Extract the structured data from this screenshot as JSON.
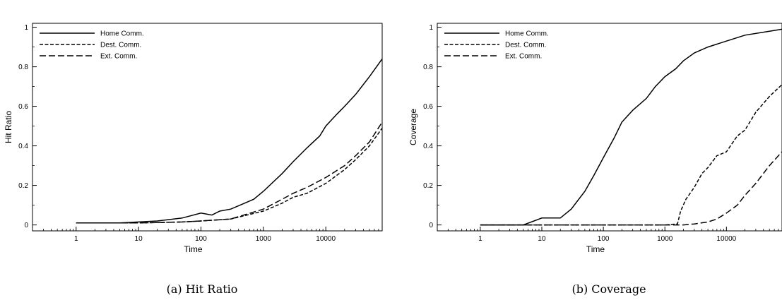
{
  "chart_data": [
    {
      "type": "line",
      "caption": "(a) Hit Ratio",
      "xlabel": "Time",
      "ylabel": "Hit Ratio",
      "xscale": "log",
      "xlim": [
        0.2,
        80000
      ],
      "ylim": [
        -0.03,
        1.02
      ],
      "xticks": [
        {
          "value": 1,
          "label": "1"
        },
        {
          "value": 10,
          "label": "10"
        },
        {
          "value": 100,
          "label": "100"
        },
        {
          "value": 1000,
          "label": "1000"
        },
        {
          "value": 10000,
          "label": "10000"
        }
      ],
      "yticks": [
        {
          "value": 0,
          "label": "0"
        },
        {
          "value": 0.2,
          "label": "0.2"
        },
        {
          "value": 0.4,
          "label": "0.4"
        },
        {
          "value": 0.6,
          "label": "0.6"
        },
        {
          "value": 0.8,
          "label": "0.8"
        },
        {
          "value": 1,
          "label": "1"
        }
      ],
      "legend_position": "top-left",
      "series": [
        {
          "name": "Home Comm.",
          "style": "solid",
          "x": [
            1,
            5,
            10,
            20,
            50,
            100,
            150,
            200,
            300,
            500,
            700,
            1000,
            2000,
            3000,
            5000,
            8000,
            10000,
            15000,
            20000,
            30000,
            50000,
            80000
          ],
          "y": [
            0.01,
            0.01,
            0.015,
            0.02,
            0.035,
            0.06,
            0.05,
            0.07,
            0.08,
            0.11,
            0.13,
            0.17,
            0.26,
            0.32,
            0.39,
            0.45,
            0.5,
            0.56,
            0.6,
            0.66,
            0.75,
            0.84
          ]
        },
        {
          "name": "Dest. Comm.",
          "style": "short-dash",
          "x": [
            1,
            10,
            50,
            100,
            300,
            1000,
            2000,
            3000,
            5000,
            10000,
            20000,
            30000,
            50000,
            80000
          ],
          "y": [
            0.01,
            0.01,
            0.015,
            0.02,
            0.03,
            0.07,
            0.11,
            0.14,
            0.16,
            0.21,
            0.28,
            0.33,
            0.4,
            0.49
          ]
        },
        {
          "name": "Ext. Comm.",
          "style": "long-dash",
          "x": [
            1,
            10,
            50,
            100,
            300,
            1000,
            2000,
            3000,
            5000,
            10000,
            20000,
            30000,
            50000,
            80000
          ],
          "y": [
            0.01,
            0.01,
            0.015,
            0.02,
            0.03,
            0.08,
            0.13,
            0.16,
            0.19,
            0.24,
            0.3,
            0.35,
            0.42,
            0.52
          ]
        }
      ]
    },
    {
      "type": "line",
      "caption": "(b) Coverage",
      "xlabel": "Time",
      "ylabel": "Coverage",
      "xscale": "log",
      "xlim": [
        0.2,
        80000
      ],
      "ylim": [
        -0.03,
        1.02
      ],
      "xticks": [
        {
          "value": 1,
          "label": "1"
        },
        {
          "value": 10,
          "label": "10"
        },
        {
          "value": 100,
          "label": "100"
        },
        {
          "value": 1000,
          "label": "1000"
        },
        {
          "value": 10000,
          "label": "10000"
        }
      ],
      "yticks": [
        {
          "value": 0,
          "label": "0"
        },
        {
          "value": 0.2,
          "label": "0.2"
        },
        {
          "value": 0.4,
          "label": "0.4"
        },
        {
          "value": 0.6,
          "label": "0.6"
        },
        {
          "value": 0.8,
          "label": "0.8"
        },
        {
          "value": 1,
          "label": "1"
        }
      ],
      "legend_position": "top-left",
      "series": [
        {
          "name": "Home Comm.",
          "style": "solid",
          "x": [
            1,
            5,
            10,
            20,
            30,
            50,
            70,
            100,
            150,
            200,
            300,
            500,
            700,
            1000,
            1500,
            2000,
            3000,
            5000,
            10000,
            20000,
            50000,
            80000
          ],
          "y": [
            0,
            0,
            0.035,
            0.035,
            0.08,
            0.17,
            0.25,
            0.34,
            0.44,
            0.52,
            0.58,
            0.64,
            0.7,
            0.75,
            0.79,
            0.83,
            0.87,
            0.9,
            0.93,
            0.96,
            0.98,
            0.99
          ]
        },
        {
          "name": "Dest. Comm.",
          "style": "short-dash",
          "x": [
            1,
            1000,
            1600,
            1800,
            2200,
            3000,
            4000,
            5000,
            7000,
            10000,
            15000,
            20000,
            30000,
            50000,
            80000
          ],
          "y": [
            0,
            0,
            0.005,
            0.07,
            0.13,
            0.19,
            0.26,
            0.29,
            0.35,
            0.37,
            0.45,
            0.48,
            0.57,
            0.65,
            0.71
          ]
        },
        {
          "name": "Ext. Comm.",
          "style": "long-dash",
          "x": [
            1,
            2000,
            3000,
            5000,
            7000,
            10000,
            15000,
            20000,
            30000,
            50000,
            80000
          ],
          "y": [
            0,
            0,
            0.005,
            0.015,
            0.03,
            0.06,
            0.1,
            0.15,
            0.21,
            0.3,
            0.37
          ]
        }
      ]
    }
  ]
}
